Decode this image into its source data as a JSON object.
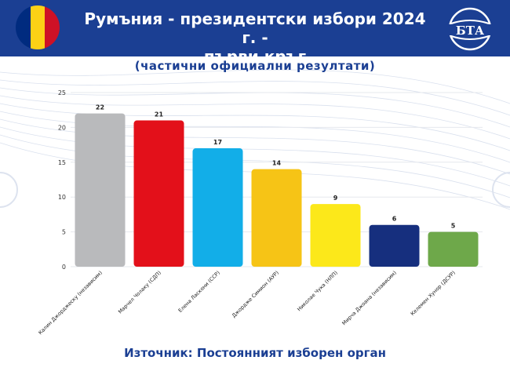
{
  "header": {
    "title_line1": "Румъния - президентски избори 2024 г. -",
    "title_line2": "първи кръг",
    "logo_text": "БТА",
    "background_color": "#1b3f93",
    "flag_colors": [
      "#002b7f",
      "#fcd116",
      "#ce1126"
    ]
  },
  "subtitle": "(частични официални резултати)",
  "source": "Източник: Постоянният изборен орган",
  "watermark_text": "БТА",
  "chart_data": {
    "type": "bar",
    "categories": [
      "Калин Джорджеску (независим)",
      "Марчел Чолаку (СДП)",
      "Елена Ласкони (ССР)",
      "Джордже Симион (АУР)",
      "Николае Чука (НЛП)",
      "Мирча Джоана (независим)",
      "Келемен Хунор (ДСУР)"
    ],
    "values": [
      22,
      21,
      17,
      14,
      9,
      6,
      5
    ],
    "colors": [
      "#b9babc",
      "#e3101a",
      "#12aee8",
      "#f6c416",
      "#fce81a",
      "#162f7e",
      "#6ea84a"
    ],
    "ylim": [
      0,
      25
    ],
    "yticks": [
      0,
      5,
      10,
      15,
      20,
      25
    ],
    "title": "",
    "xlabel": "",
    "ylabel": ""
  }
}
